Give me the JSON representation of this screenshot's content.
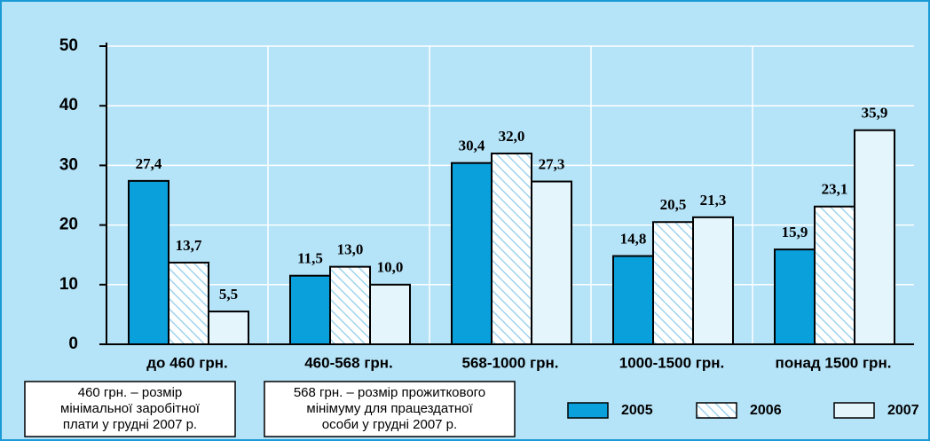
{
  "chart_data": {
    "type": "bar",
    "categories": [
      "до 460 грн.",
      "460-568 грн.",
      "568-1000 грн.",
      "1000-1500 грн.",
      "понад 1500 грн."
    ],
    "series": [
      {
        "name": "2005",
        "color": "#0aa0dc",
        "values": [
          27.4,
          11.5,
          30.4,
          14.8,
          15.9
        ],
        "value_labels": [
          "27,4",
          "11,5",
          "30,4",
          "14,8",
          "15,9"
        ]
      },
      {
        "name": "2006",
        "color": "#ffffff",
        "pattern": "hatch",
        "values": [
          13.7,
          13.0,
          32.0,
          20.5,
          23.1
        ],
        "value_labels": [
          "13,7",
          "13,0",
          "32,0",
          "20,5",
          "23,1"
        ]
      },
      {
        "name": "2007",
        "color": "#e4f5fc",
        "values": [
          5.5,
          10.0,
          27.3,
          21.3,
          35.9
        ],
        "value_labels": [
          "5,5",
          "10,0",
          "27,3",
          "21,3",
          "35,9"
        ]
      }
    ],
    "ylim": [
      0,
      50
    ],
    "yticks": [
      0,
      10,
      20,
      30,
      40,
      50
    ],
    "grid": true,
    "annotations": [
      [
        "460 грн. – розмір",
        "мінімальної заробітної",
        "плати у грудні 2007 р."
      ],
      [
        "568 грн. – розмір прожиткового",
        "мінімуму для працездатної",
        "особи у грудні 2007 р."
      ]
    ]
  }
}
